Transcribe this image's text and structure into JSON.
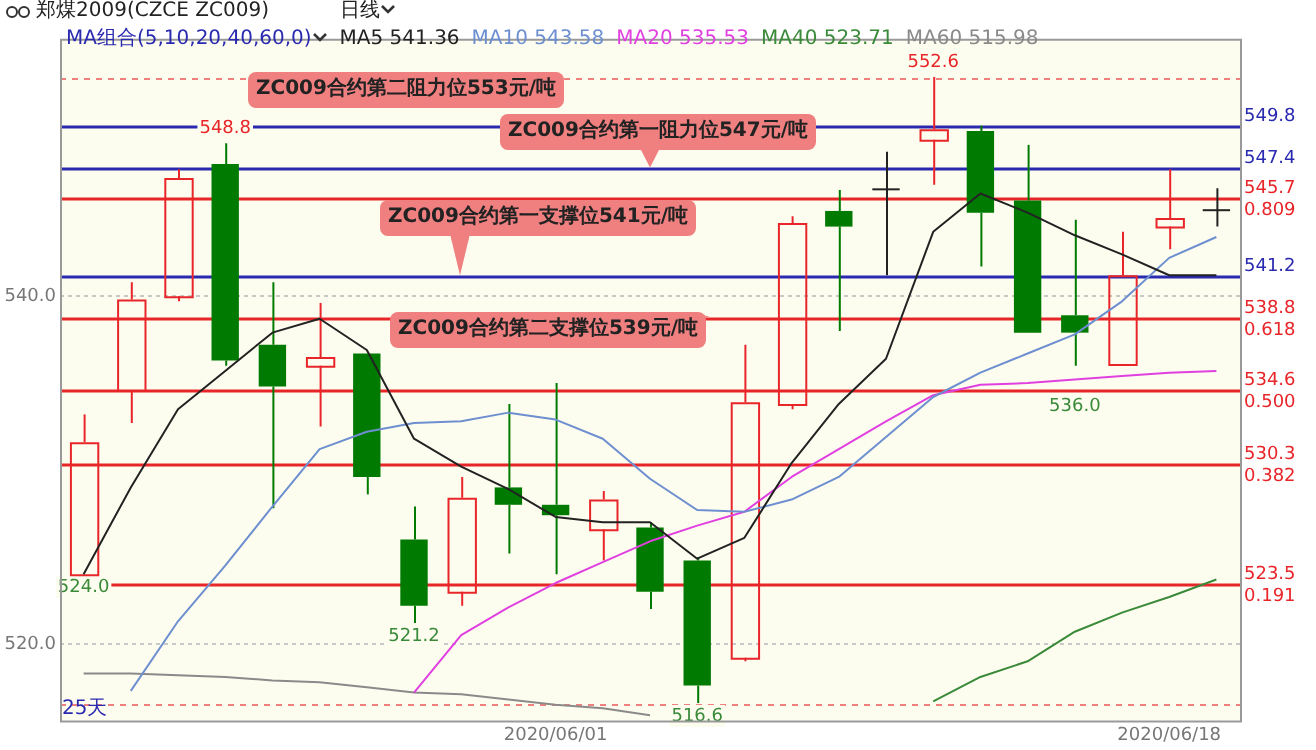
{
  "chart_data": {
    "type": "candlestick",
    "title": "郑煤2009(CZCE ZC009)",
    "subtitle": "日线",
    "legend_title": "MA组合(5,10,20,40,60,0)",
    "legend": "top",
    "categories": [
      null,
      null,
      null,
      null,
      null,
      null,
      null,
      null,
      null,
      null,
      "2020/06/01",
      null,
      null,
      null,
      null,
      null,
      null,
      null,
      null,
      null,
      null,
      null,
      null,
      "2020/06/18",
      null
    ],
    "ohlc": [
      [
        524.0,
        533.2,
        524.0,
        531.6
      ],
      [
        534.6,
        540.8,
        532.7,
        539.8
      ],
      [
        540.0,
        547.3,
        539.7,
        546.8
      ],
      [
        547.6,
        548.8,
        536.0,
        536.3
      ],
      [
        537.2,
        540.8,
        527.8,
        534.8
      ],
      [
        536.0,
        539.6,
        532.5,
        536.5
      ],
      [
        536.7,
        536.7,
        528.6,
        529.6
      ],
      [
        526.0,
        527.9,
        521.2,
        522.2
      ],
      [
        523.0,
        529.6,
        522.2,
        528.4
      ],
      [
        529.0,
        533.8,
        525.2,
        528.0
      ],
      [
        528.0,
        535.0,
        524.0,
        527.4
      ],
      [
        526.6,
        528.8,
        524.8,
        528.3
      ],
      [
        526.7,
        527.0,
        522.0,
        523.0
      ],
      [
        524.8,
        525.0,
        516.6,
        517.6
      ],
      [
        519.2,
        537.2,
        519.0,
        533.9
      ],
      [
        533.8,
        544.6,
        533.5,
        544.2
      ],
      [
        544.9,
        546.1,
        538.0,
        544.0
      ],
      [
        546.2,
        548.3,
        541.2,
        546.2
      ],
      [
        549.0,
        552.6,
        546.4,
        549.6
      ],
      [
        549.5,
        549.8,
        541.7,
        544.8
      ],
      [
        545.5,
        548.7,
        537.9,
        537.9
      ],
      [
        538.9,
        544.4,
        536.0,
        537.9
      ],
      [
        536.1,
        543.7,
        536.0,
        541.2
      ],
      [
        544.0,
        547.3,
        542.7,
        544.5
      ],
      [
        545.0,
        546.2,
        544.0,
        545.0
      ]
    ],
    "colors": [
      "#e8262a",
      "#e8262a",
      "#e8262a",
      "#007a00",
      "#007a00",
      "#e8262a",
      "#007a00",
      "#007a00",
      "#e8262a",
      "#007a00",
      "#007a00",
      "#e8262a",
      "#007a00",
      "#007a00",
      "#e8262a",
      "#e8262a",
      "#007a00",
      "#222222",
      "#e8262a",
      "#007a00",
      "#007a00",
      "#007a00",
      "#e8262a",
      "#e8262a",
      "#222222"
    ],
    "value_labels": [
      "524.0",
      null,
      null,
      "548.8",
      null,
      null,
      null,
      "521.2",
      null,
      null,
      null,
      null,
      null,
      "516.6",
      null,
      null,
      null,
      null,
      "552.6",
      null,
      null,
      "536.0",
      null,
      null,
      null
    ],
    "series": [
      {
        "type": "line",
        "name": "MA5 541.36",
        "color": "#222222",
        "values": [
          524.0,
          529.0,
          533.5,
          535.7,
          537.9,
          538.7,
          536.9,
          531.8,
          530.2,
          528.9,
          527.3,
          527.0,
          527.0,
          524.9,
          526.1,
          530.4,
          533.8,
          536.4,
          543.7,
          545.9,
          544.8,
          543.5,
          542.4,
          541.2,
          541.2
        ]
      },
      {
        "type": "line",
        "name": "MA10 543.58",
        "color": "#6d8fd0",
        "values": [
          null,
          517.3,
          521.3,
          524.5,
          527.9,
          531.2,
          532.2,
          532.7,
          532.8,
          533.3,
          532.9,
          531.8,
          529.5,
          527.7,
          527.6,
          528.3,
          529.6,
          531.9,
          534.2,
          535.6,
          536.7,
          537.8,
          539.7,
          542.2,
          543.4
        ]
      },
      {
        "type": "line",
        "name": "MA20 535.53",
        "color": "#e040e0",
        "values": [
          null,
          null,
          null,
          null,
          null,
          null,
          null,
          517.2,
          520.5,
          522.1,
          523.5,
          524.7,
          525.9,
          526.8,
          527.6,
          529.6,
          531.2,
          532.8,
          534.3,
          534.9,
          535.0,
          535.2,
          535.4,
          535.6,
          535.7
        ]
      },
      {
        "type": "line",
        "name": "MA40 523.71",
        "color": "#3a8a3a",
        "values": [
          null,
          null,
          null,
          null,
          null,
          null,
          null,
          null,
          null,
          null,
          null,
          null,
          null,
          null,
          null,
          null,
          null,
          null,
          516.7,
          518.1,
          519.0,
          520.7,
          521.8,
          522.7,
          523.7
        ]
      },
      {
        "type": "line",
        "name": "MA60 515.98",
        "color": "#8a8a8a",
        "values": [
          518.3,
          518.3,
          518.2,
          518.1,
          517.9,
          517.8,
          517.5,
          517.2,
          517.1,
          516.8,
          516.5,
          516.3,
          515.9,
          null,
          null,
          null,
          null,
          null,
          null,
          null,
          null,
          null,
          null,
          null,
          null
        ]
      }
    ],
    "ylim": [
      515.6,
      554.8
    ],
    "yticks": [
      {
        "value": 540,
        "label": "540.0"
      },
      {
        "value": 520,
        "label": "520.0"
      }
    ],
    "grid": "y",
    "ref_lines": [
      {
        "axis": "y",
        "value": 552.6,
        "color": "#f08080",
        "line_style": "dashed"
      },
      {
        "axis": "y",
        "value": 549.8,
        "label": "549.8",
        "color": "#2a2ab0"
      },
      {
        "axis": "y",
        "value": 547.4,
        "label": "547.4",
        "color": "#2a2ab0"
      },
      {
        "axis": "y",
        "value": 545.7,
        "label": "545.7\n0.809",
        "color": "#e8262a"
      },
      {
        "axis": "y",
        "value": 541.2,
        "label": "541.2",
        "color": "#2a2ab0"
      },
      {
        "axis": "y",
        "value": 538.8,
        "label": "538.8\n0.618",
        "color": "#e8262a"
      },
      {
        "axis": "y",
        "value": 534.6,
        "label": "534.6\n0.500",
        "color": "#e8262a"
      },
      {
        "axis": "y",
        "value": 530.3,
        "label": "530.3\n0.382",
        "color": "#e8262a"
      },
      {
        "axis": "y",
        "value": 523.5,
        "label": "523.5\n0.191",
        "color": "#e8262a"
      },
      {
        "axis": "y",
        "value": 516.6,
        "color": "#f08080",
        "line_style": "dashed"
      }
    ],
    "annotations": [
      {
        "text": "ZC009合约第二阻力位553元/吨",
        "y": 552.6
      },
      {
        "text": "ZC009合约第一阻力位547元/吨",
        "y": 547.4
      },
      {
        "text": "ZC009合约第一支撑位541元/吨",
        "y": 541.2
      },
      {
        "text": "ZC009合约第二支撑位539元/吨",
        "y": 538.8
      },
      "25天"
    ]
  }
}
